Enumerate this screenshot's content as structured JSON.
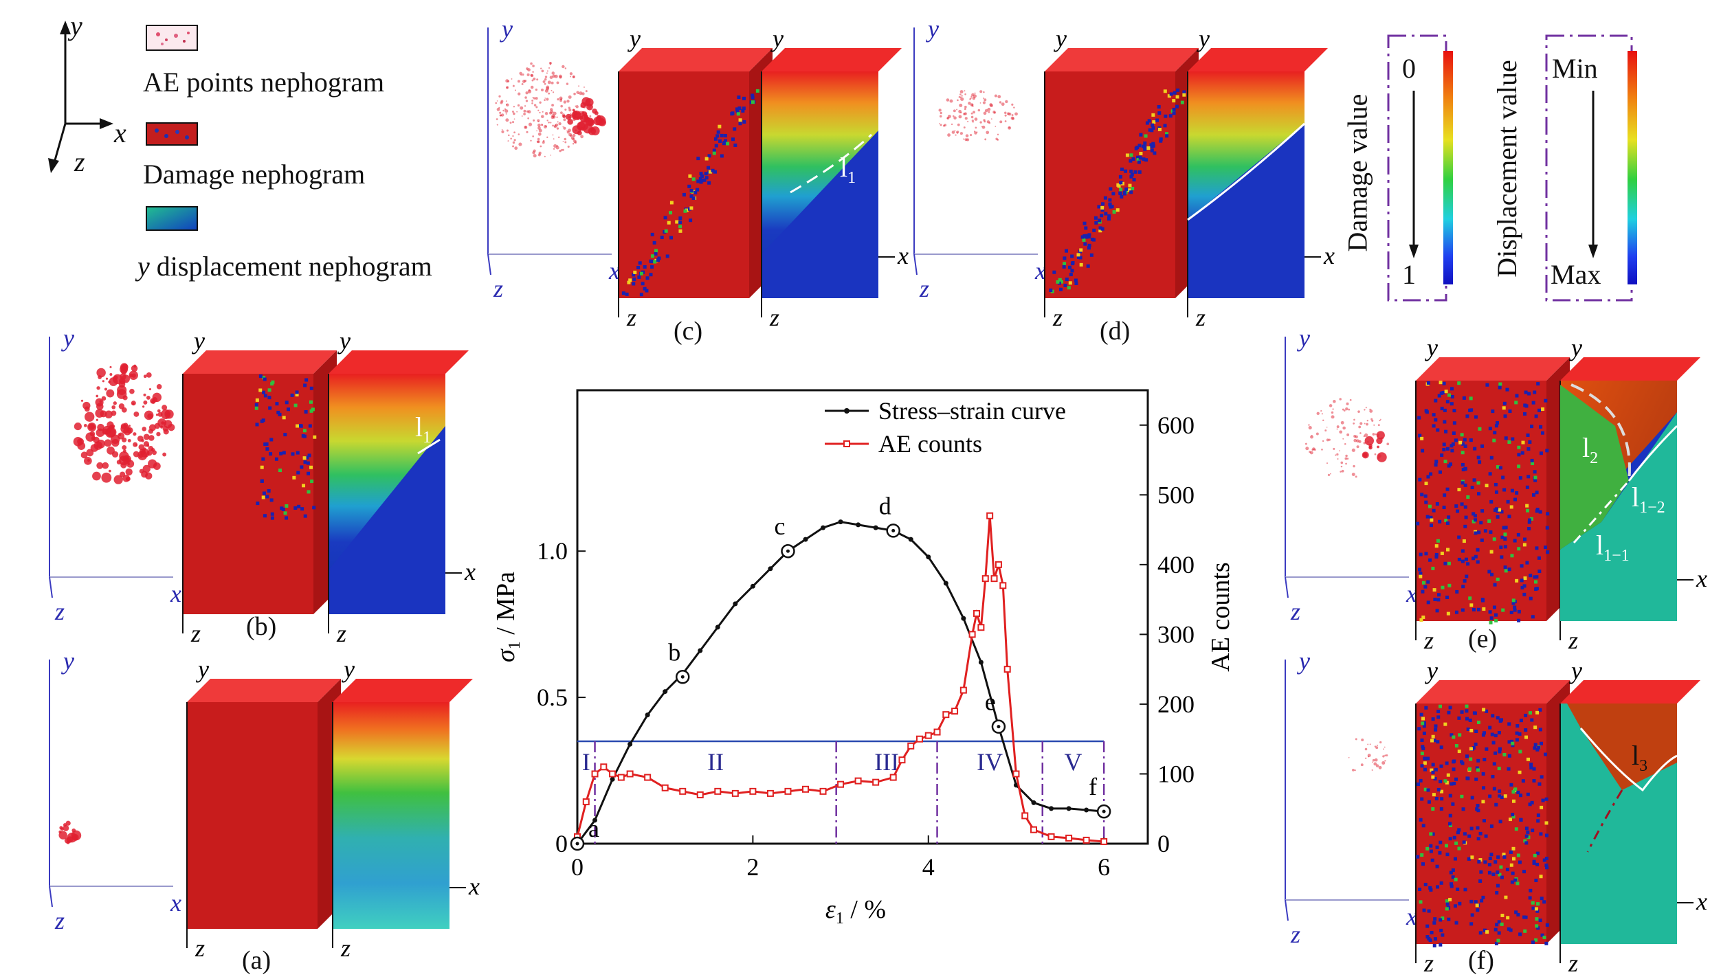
{
  "legend": {
    "axis_y": "y",
    "axis_x": "x",
    "axis_z": "z",
    "ae_label": "AE points nephogram",
    "damage_label": "Damage nephogram",
    "disp_label_y": "y",
    "disp_label_rest": " displacement nephogram"
  },
  "colorbars": {
    "damage": {
      "top": "0",
      "bottom": "1",
      "title": "Damage value"
    },
    "displacement": {
      "top": "Min",
      "bottom": "Max",
      "title": "Displacement value"
    }
  },
  "panels": {
    "a": "(a)",
    "b": "(b)",
    "c": "(c)",
    "d": "(d)",
    "e": "(e)",
    "f": "(f)"
  },
  "crack_labels": {
    "b": "l",
    "b_sub": "1",
    "c": "l",
    "c_sub": "1",
    "e1": "l",
    "e1_sub": "2",
    "e2": "l",
    "e2_sub": "1−2",
    "e3": "l",
    "e3_sub": "1−1",
    "f": "l",
    "f_sub": "3"
  },
  "chart_data": {
    "type": "line",
    "xlabel": "ε",
    "xlabel_sub": "1",
    "xlabel_unit": " / %",
    "ylabel": "σ",
    "ylabel_sub": "1",
    "ylabel_unit": " / MPa",
    "y2label": "AE counts",
    "xlim": [
      0,
      6.5
    ],
    "ylim": [
      0,
      1.55
    ],
    "y2lim": [
      0,
      650
    ],
    "xticks": [
      0,
      2,
      4,
      6
    ],
    "xtick_labels": [
      "0",
      "2",
      "4",
      "6"
    ],
    "yticks": [
      0,
      0.5,
      1.0
    ],
    "ytick_labels": [
      "0",
      "0.5",
      "1.0"
    ],
    "y2ticks": [
      0,
      100,
      200,
      300,
      400,
      500,
      600
    ],
    "y2tick_labels": [
      "0",
      "100",
      "200",
      "300",
      "400",
      "500",
      "600"
    ],
    "series": [
      {
        "name": "Stress–strain curve",
        "color": "#111111",
        "axis": "left",
        "x": [
          0,
          0.2,
          0.4,
          0.6,
          0.8,
          1.0,
          1.2,
          1.4,
          1.6,
          1.8,
          2.0,
          2.2,
          2.4,
          2.6,
          2.8,
          3.0,
          3.2,
          3.4,
          3.6,
          3.8,
          4.0,
          4.2,
          4.4,
          4.6,
          4.8,
          5.0,
          5.2,
          5.4,
          5.6,
          5.8,
          6.0
        ],
        "y": [
          0,
          0.08,
          0.22,
          0.34,
          0.44,
          0.52,
          0.58,
          0.66,
          0.74,
          0.82,
          0.88,
          0.94,
          1.0,
          1.04,
          1.08,
          1.1,
          1.09,
          1.08,
          1.07,
          1.04,
          0.98,
          0.89,
          0.77,
          0.62,
          0.4,
          0.2,
          0.14,
          0.12,
          0.12,
          0.115,
          0.11
        ]
      },
      {
        "name": "AE counts",
        "color": "#e02020",
        "axis": "right",
        "x": [
          0,
          0.1,
          0.2,
          0.3,
          0.4,
          0.5,
          0.6,
          0.8,
          1.0,
          1.2,
          1.4,
          1.6,
          1.8,
          2.0,
          2.2,
          2.4,
          2.6,
          2.8,
          3.0,
          3.2,
          3.4,
          3.6,
          3.7,
          3.8,
          3.9,
          4.0,
          4.1,
          4.2,
          4.3,
          4.4,
          4.5,
          4.55,
          4.6,
          4.65,
          4.7,
          4.75,
          4.8,
          4.85,
          4.9,
          5.0,
          5.1,
          5.2,
          5.4,
          5.6,
          5.8,
          6.0
        ],
        "y": [
          10,
          60,
          100,
          110,
          100,
          95,
          100,
          95,
          80,
          75,
          70,
          75,
          72,
          75,
          72,
          75,
          78,
          75,
          85,
          90,
          88,
          95,
          120,
          140,
          150,
          155,
          160,
          185,
          190,
          220,
          300,
          330,
          310,
          380,
          470,
          380,
          400,
          370,
          250,
          100,
          40,
          20,
          10,
          8,
          5,
          3
        ]
      }
    ],
    "points": [
      {
        "label": "a",
        "x": 0.0,
        "y": 0.0
      },
      {
        "label": "b",
        "x": 1.2,
        "y": 0.57
      },
      {
        "label": "c",
        "x": 2.4,
        "y": 1.0
      },
      {
        "label": "d",
        "x": 3.6,
        "y": 1.07
      },
      {
        "label": "e",
        "x": 4.8,
        "y": 0.4
      },
      {
        "label": "f",
        "x": 6.0,
        "y": 0.11
      }
    ],
    "stages": [
      {
        "label": "I",
        "from": 0,
        "to": 0.2
      },
      {
        "label": "II",
        "from": 0.2,
        "to": 2.95
      },
      {
        "label": "III",
        "from": 2.95,
        "to": 4.1
      },
      {
        "label": "IV",
        "from": 4.1,
        "to": 5.3
      },
      {
        "label": "V",
        "from": 5.3,
        "to": 6.0
      }
    ],
    "stage_line_y": 0.35,
    "legend_position": "top-right"
  }
}
